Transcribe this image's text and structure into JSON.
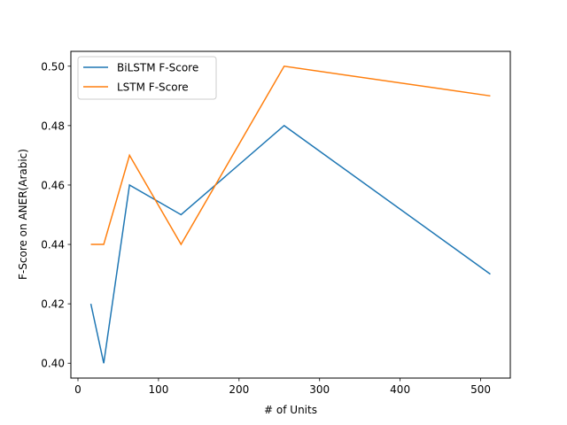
{
  "chart_data": {
    "type": "line",
    "title": "",
    "xlabel": "# of Units",
    "ylabel": "F-Score on ANER(Arabic)",
    "xlim": [
      -8.8,
      536.8
    ],
    "ylim": [
      0.395,
      0.505
    ],
    "x_ticks": [
      0,
      100,
      200,
      300,
      400,
      500
    ],
    "y_ticks": [
      0.4,
      0.42,
      0.44,
      0.46,
      0.48,
      0.5
    ],
    "x_tick_labels": [
      "0",
      "100",
      "200",
      "300",
      "400",
      "500"
    ],
    "y_tick_labels": [
      "0.40",
      "0.42",
      "0.44",
      "0.46",
      "0.48",
      "0.50"
    ],
    "grid": false,
    "legend_position": "upper-left",
    "x": [
      16,
      32,
      64,
      128,
      256,
      512
    ],
    "series": [
      {
        "name": "BiLSTM F-Score",
        "color": "#1f77b4",
        "values": [
          0.42,
          0.4,
          0.46,
          0.45,
          0.48,
          0.43
        ]
      },
      {
        "name": "LSTM F-Score",
        "color": "#ff7f0e",
        "values": [
          0.44,
          0.44,
          0.47,
          0.44,
          0.5,
          0.49
        ]
      }
    ]
  }
}
